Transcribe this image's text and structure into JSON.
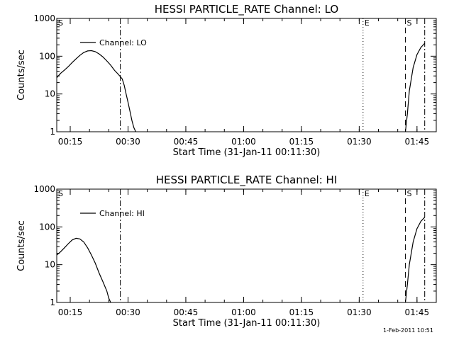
{
  "footer": {
    "timestamp": "1-Feb-2011 10:51"
  },
  "chart_data": [
    {
      "type": "line",
      "title": "HESSI PARTICLE_RATE Channel: LO",
      "xlabel": "Start Time (31-Jan-11 00:11:30)",
      "ylabel": "Counts/sec",
      "y_scale": "log",
      "ylim": [
        1,
        1000
      ],
      "xlim": [
        "00:11:30",
        "01:50:00"
      ],
      "x_ticks": [
        "00:15",
        "00:30",
        "00:45",
        "01:00",
        "01:15",
        "01:30",
        "01:45"
      ],
      "y_ticks": [
        "1",
        "10",
        "100",
        "1000"
      ],
      "legend": {
        "placement": "top-left",
        "entries": [
          "Channel: LO"
        ]
      },
      "markers": [
        {
          "label": "S",
          "time": "00:11:30",
          "style": "dash"
        },
        {
          "label": "",
          "time": "00:28:00",
          "style": "dashdot"
        },
        {
          "label": "E",
          "time": "01:31:00",
          "style": "dot"
        },
        {
          "label": "S",
          "time": "01:42:00",
          "style": "dash"
        },
        {
          "label": "",
          "time": "01:47:00",
          "style": "dashdot"
        }
      ],
      "series": [
        {
          "name": "Channel: LO",
          "segments": [
            {
              "x": [
                "00:11:30",
                "00:12:30",
                "00:13:30",
                "00:14:30",
                "00:15:30",
                "00:16:30",
                "00:17:30",
                "00:18:30",
                "00:19:30",
                "00:20:30",
                "00:21:30",
                "00:22:30",
                "00:23:30",
                "00:24:30",
                "00:25:30",
                "00:26:30",
                "00:27:30",
                "00:28:30",
                "00:29:00",
                "00:29:30",
                "00:30:00",
                "00:30:30",
                "00:31:00",
                "00:31:30",
                "00:32:00"
              ],
              "y": [
                27,
                35,
                43,
                53,
                68,
                85,
                105,
                125,
                138,
                140,
                132,
                115,
                95,
                75,
                58,
                42,
                33,
                25,
                17,
                10,
                6,
                3.5,
                2,
                1.3,
                1
              ]
            },
            {
              "x": [
                "01:42:00",
                "01:42:30",
                "01:43:00",
                "01:44:00",
                "01:45:00",
                "01:46:00",
                "01:47:00"
              ],
              "y": [
                1,
                3,
                12,
                50,
                110,
                170,
                220
              ]
            }
          ]
        }
      ]
    },
    {
      "type": "line",
      "title": "HESSI PARTICLE_RATE Channel: HI",
      "xlabel": "Start Time (31-Jan-11 00:11:30)",
      "ylabel": "Counts/sec",
      "y_scale": "log",
      "ylim": [
        1,
        1000
      ],
      "xlim": [
        "00:11:30",
        "01:50:00"
      ],
      "x_ticks": [
        "00:15",
        "00:30",
        "00:45",
        "01:00",
        "01:15",
        "01:30",
        "01:45"
      ],
      "y_ticks": [
        "1",
        "10",
        "100",
        "1000"
      ],
      "legend": {
        "placement": "top-left",
        "entries": [
          "Channel: HI"
        ]
      },
      "markers": [
        {
          "label": "S",
          "time": "00:11:30",
          "style": "dash"
        },
        {
          "label": "",
          "time": "00:28:00",
          "style": "dashdot"
        },
        {
          "label": "E",
          "time": "01:31:00",
          "style": "dot"
        },
        {
          "label": "S",
          "time": "01:42:00",
          "style": "dash"
        },
        {
          "label": "",
          "time": "01:47:00",
          "style": "dashdot"
        }
      ],
      "series": [
        {
          "name": "Channel: HI",
          "segments": [
            {
              "x": [
                "00:11:30",
                "00:12:30",
                "00:13:30",
                "00:14:30",
                "00:15:30",
                "00:16:30",
                "00:17:30",
                "00:18:30",
                "00:19:30",
                "00:20:30",
                "00:21:30",
                "00:22:30",
                "00:23:30",
                "00:24:30",
                "00:25:00",
                "00:25:30"
              ],
              "y": [
                18,
                22,
                28,
                36,
                45,
                50,
                48,
                40,
                28,
                18,
                11,
                6,
                3.5,
                2,
                1.3,
                1
              ]
            },
            {
              "x": [
                "01:42:00",
                "01:42:30",
                "01:43:00",
                "01:44:00",
                "01:45:00",
                "01:46:00",
                "01:47:00"
              ],
              "y": [
                1,
                3,
                10,
                40,
                90,
                140,
                180
              ]
            }
          ]
        }
      ]
    }
  ]
}
